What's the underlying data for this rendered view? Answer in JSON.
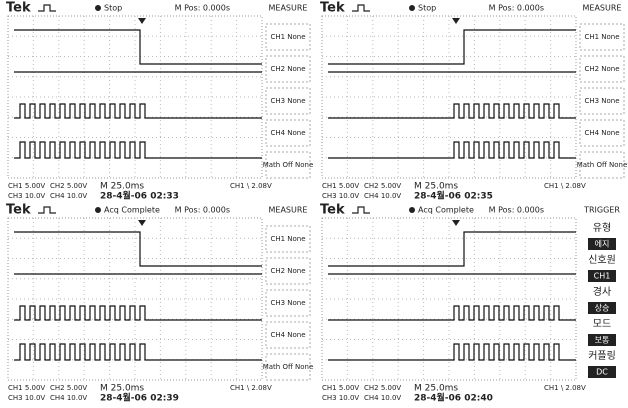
{
  "panels": [
    {
      "header": {
        "brand": "Tek",
        "status": "Stop",
        "position": "M Pos: 0.000s"
      },
      "menu": {
        "title": "MEASURE",
        "items": [
          "CH1 None",
          "CH2 None",
          "CH3 None",
          "CH4 None",
          "Math Off None"
        ]
      },
      "footer": {
        "ch1": "CH1 5.00V",
        "ch2": "CH2 5.00V",
        "timebase": "M 25.0ms",
        "trigger": "CH1 \\ 2.08V",
        "ch3": "CH3 10.0V",
        "ch4": "CH4 10.0V",
        "timestamp": "28-4월-06 02:33"
      }
    },
    {
      "header": {
        "brand": "Tek",
        "status": "Stop",
        "position": "M Pos: 0.000s"
      },
      "menu": {
        "title": "MEASURE",
        "items": [
          "CH1 None",
          "CH2 None",
          "CH3 None",
          "CH4 None",
          "Math Off None"
        ]
      },
      "footer": {
        "ch1": "CH1 5.00V",
        "ch2": "CH2 5.00V",
        "timebase": "M 25.0ms",
        "trigger": "CH1 \\ 2.08V",
        "ch3": "CH3 10.0V",
        "ch4": "CH4 10.0V",
        "timestamp": "28-4월-06 02:35"
      }
    },
    {
      "header": {
        "brand": "Tek",
        "status": "Acq Complete",
        "position": "M Pos: 0.000s"
      },
      "menu": {
        "title": "MEASURE",
        "items": [
          "CH1 None",
          "CH2 None",
          "CH3 None",
          "CH4 None",
          "Math Off None"
        ]
      },
      "footer": {
        "ch1": "CH1 5.00V",
        "ch2": "CH2 5.00V",
        "timebase": "M 25.0ms",
        "trigger": "CH1 \\ 2.08V",
        "ch3": "CH3 10.0V",
        "ch4": "CH4 10.0V",
        "timestamp": "28-4월-06 02:39"
      }
    },
    {
      "header": {
        "brand": "Tek",
        "status": "Acq Complete",
        "position": "M Pos: 0.000s"
      },
      "menu": {
        "title": "TRIGGER",
        "items": [
          "유형",
          "에지",
          "신호원",
          "CH1",
          "경사",
          "상승",
          "모드",
          "보통",
          "커플링",
          "DC"
        ]
      },
      "footer": {
        "ch1": "CH1 5.00V",
        "ch2": "CH2 5.00V",
        "timebase": "M 25.0ms",
        "trigger": "CH1 \\ 2.08V",
        "ch3": "CH3 10.0V",
        "ch4": "CH4 10.0V",
        "timestamp": "28-4월-06 02:40"
      }
    }
  ]
}
